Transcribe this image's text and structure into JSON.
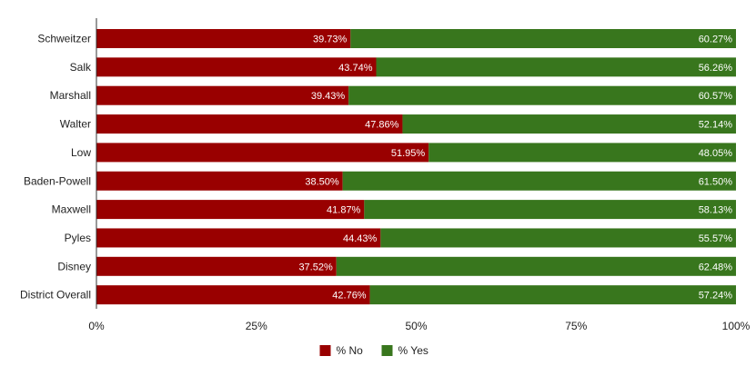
{
  "chart_data": {
    "type": "bar",
    "orientation": "horizontal",
    "stacked": "percent",
    "categories": [
      "Schweitzer",
      "Salk",
      "Marshall",
      "Walter",
      "Low",
      "Baden-Powell",
      "Maxwell",
      "Pyles",
      "Disney",
      "District Overall"
    ],
    "series": [
      {
        "name": "% No",
        "color": "#990000",
        "values": [
          39.73,
          43.74,
          39.43,
          47.86,
          51.95,
          38.5,
          41.87,
          44.43,
          37.52,
          42.76
        ],
        "labels": [
          "39.73%",
          "43.74%",
          "39.43%",
          "47.86%",
          "51.95%",
          "38.50%",
          "41.87%",
          "44.43%",
          "37.52%",
          "42.76%"
        ]
      },
      {
        "name": "% Yes",
        "color": "#38761d",
        "values": [
          60.27,
          56.26,
          60.57,
          52.14,
          48.05,
          61.5,
          58.13,
          55.57,
          62.48,
          57.24
        ],
        "labels": [
          "60.27%",
          "56.26%",
          "60.57%",
          "52.14%",
          "48.05%",
          "61.50%",
          "58.13%",
          "55.57%",
          "62.48%",
          "57.24%"
        ]
      }
    ],
    "x_ticks": [
      0,
      25,
      50,
      75,
      100
    ],
    "x_tick_labels": [
      "0%",
      "25%",
      "50%",
      "75%",
      "100%"
    ],
    "xlim": [
      0,
      100
    ],
    "title": "",
    "xlabel": "",
    "ylabel": "",
    "grid": false,
    "legend_position": "bottom"
  }
}
